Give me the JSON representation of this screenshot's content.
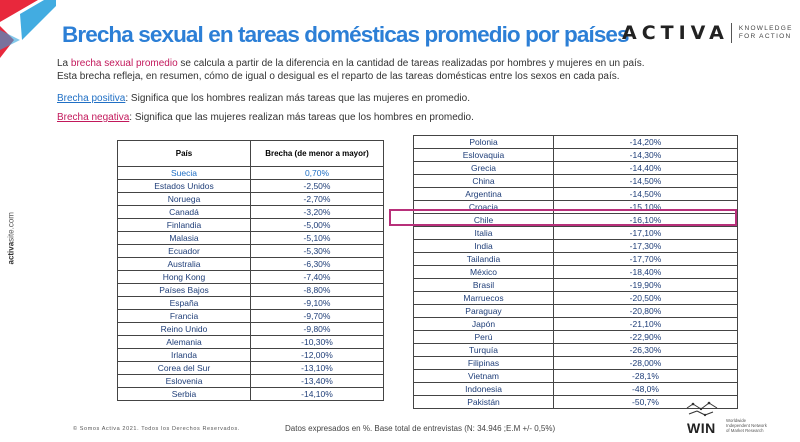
{
  "header": {
    "title": "Brecha sexual en tareas domésticas promedio por países",
    "brand_name": "ACTIVA",
    "brand_tag_line1": "KNOWLEDGE",
    "brand_tag_line2": "FOR ACTION"
  },
  "side": {
    "site_bold": "activa",
    "site_rest": "site.com"
  },
  "intro": {
    "p1_a": "La ",
    "p1_link": "brecha sexual promedio",
    "p1_b": " se calcula a partir de la diferencia en la cantidad de tareas realizadas por hombres y mujeres en un país.",
    "p2": "Esta brecha refleja, en resumen, cómo de igual o desigual es el reparto de las tareas domésticas entre los sexos en cada país."
  },
  "definitions": {
    "positive_label": "Brecha positiva",
    "positive_text": ": Significa que los hombres realizan más tareas que las mujeres en promedio.",
    "negative_label": "Brecha negativa",
    "negative_text": ": Significa que las mujeres realizan más tareas que los hombres en promedio."
  },
  "colors": {
    "title": "#2c7fd6",
    "accent_pink": "#c2185b",
    "table_text": "#1f3e78",
    "highlight": "#b8307a",
    "corner_red": "#e8283c",
    "corner_blue": "#2ea3de"
  },
  "table_left": {
    "headers": [
      "País",
      "Brecha (de menor a mayor)"
    ],
    "rows": [
      [
        "Suecia",
        "0,70%"
      ],
      [
        "Estados Unidos",
        "-2,50%"
      ],
      [
        "Noruega",
        "-2,70%"
      ],
      [
        "Canadá",
        "-3,20%"
      ],
      [
        "Finlandia",
        "-5,00%"
      ],
      [
        "Malasia",
        "-5,10%"
      ],
      [
        "Ecuador",
        "-5,30%"
      ],
      [
        "Australia",
        "-6,30%"
      ],
      [
        "Hong Kong",
        "-7,40%"
      ],
      [
        "Países Bajos",
        "-8,80%"
      ],
      [
        "España",
        "-9,10%"
      ],
      [
        "Francia",
        "-9,70%"
      ],
      [
        "Reino Unido",
        "-9,80%"
      ],
      [
        "Alemania",
        "-10,30%"
      ],
      [
        "Irlanda",
        "-12,00%"
      ],
      [
        "Corea del Sur",
        "-13,10%"
      ],
      [
        "Eslovenia",
        "-13,40%"
      ],
      [
        "Serbia",
        "-14,10%"
      ]
    ]
  },
  "table_right": {
    "rows": [
      [
        "Polonia",
        "-14,20%"
      ],
      [
        "Eslovaquia",
        "-14,30%"
      ],
      [
        "Grecia",
        "-14,40%"
      ],
      [
        "China",
        "-14,50%"
      ],
      [
        "Argentina",
        "-14,50%"
      ],
      [
        "Croacia",
        "-15,10%"
      ],
      [
        "Chile",
        "-16,10%"
      ],
      [
        "Italia",
        "-17,10%"
      ],
      [
        "India",
        "-17,30%"
      ],
      [
        "Tailandia",
        "-17,70%"
      ],
      [
        "México",
        "-18,40%"
      ],
      [
        "Brasil",
        "-19,90%"
      ],
      [
        "Marruecos",
        "-20,50%"
      ],
      [
        "Paraguay",
        "-20,80%"
      ],
      [
        "Japón",
        "-21,10%"
      ],
      [
        "Perú",
        "-22,90%"
      ],
      [
        "Turquía",
        "-26,30%"
      ],
      [
        "Filipinas",
        "-28,00%"
      ],
      [
        "Vietnam",
        "-28,1%"
      ],
      [
        "Indonesia",
        "-48,0%"
      ],
      [
        "Pakistán",
        "-50,7%"
      ]
    ],
    "highlighted_row": "Chile"
  },
  "footer": {
    "copyright": "© Somos Activa 2021. Todos los Derechos Reservados.",
    "note": "Datos expresados en %. Base total de entrevistas (N: 34.946 ;E.M +/- 0,5%)",
    "win_name": "WIN",
    "win_desc_1": "Worldwide",
    "win_desc_2": "Independent Network",
    "win_desc_3": "of Market Research"
  }
}
